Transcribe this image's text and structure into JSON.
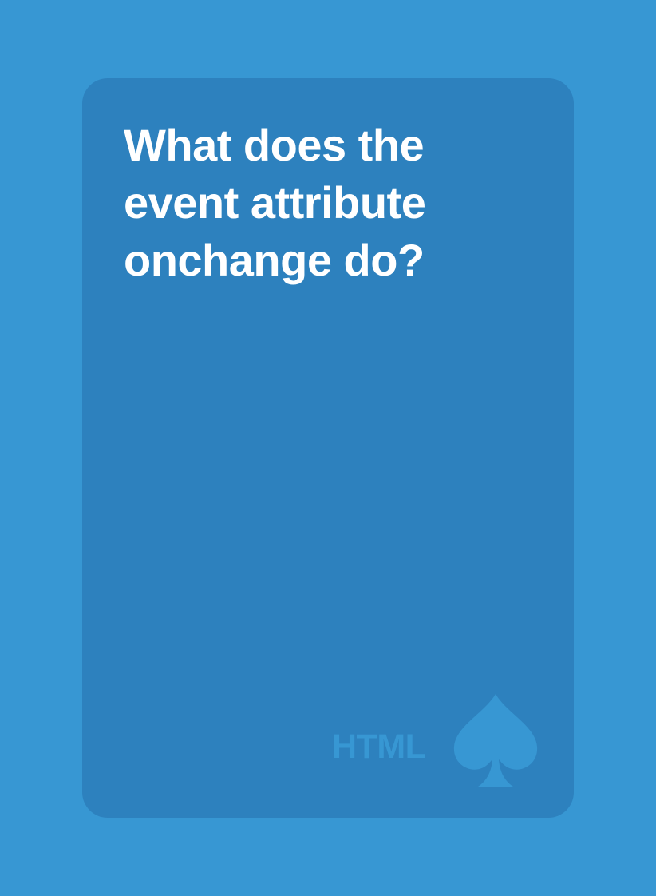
{
  "card": {
    "question": "What does the event attribute onchange do?",
    "category": "HTML",
    "suit_icon": "spade-icon"
  },
  "colors": {
    "background": "#3797d3",
    "card": "#2d81be",
    "text": "#ffffff",
    "accent": "#3797d3"
  }
}
